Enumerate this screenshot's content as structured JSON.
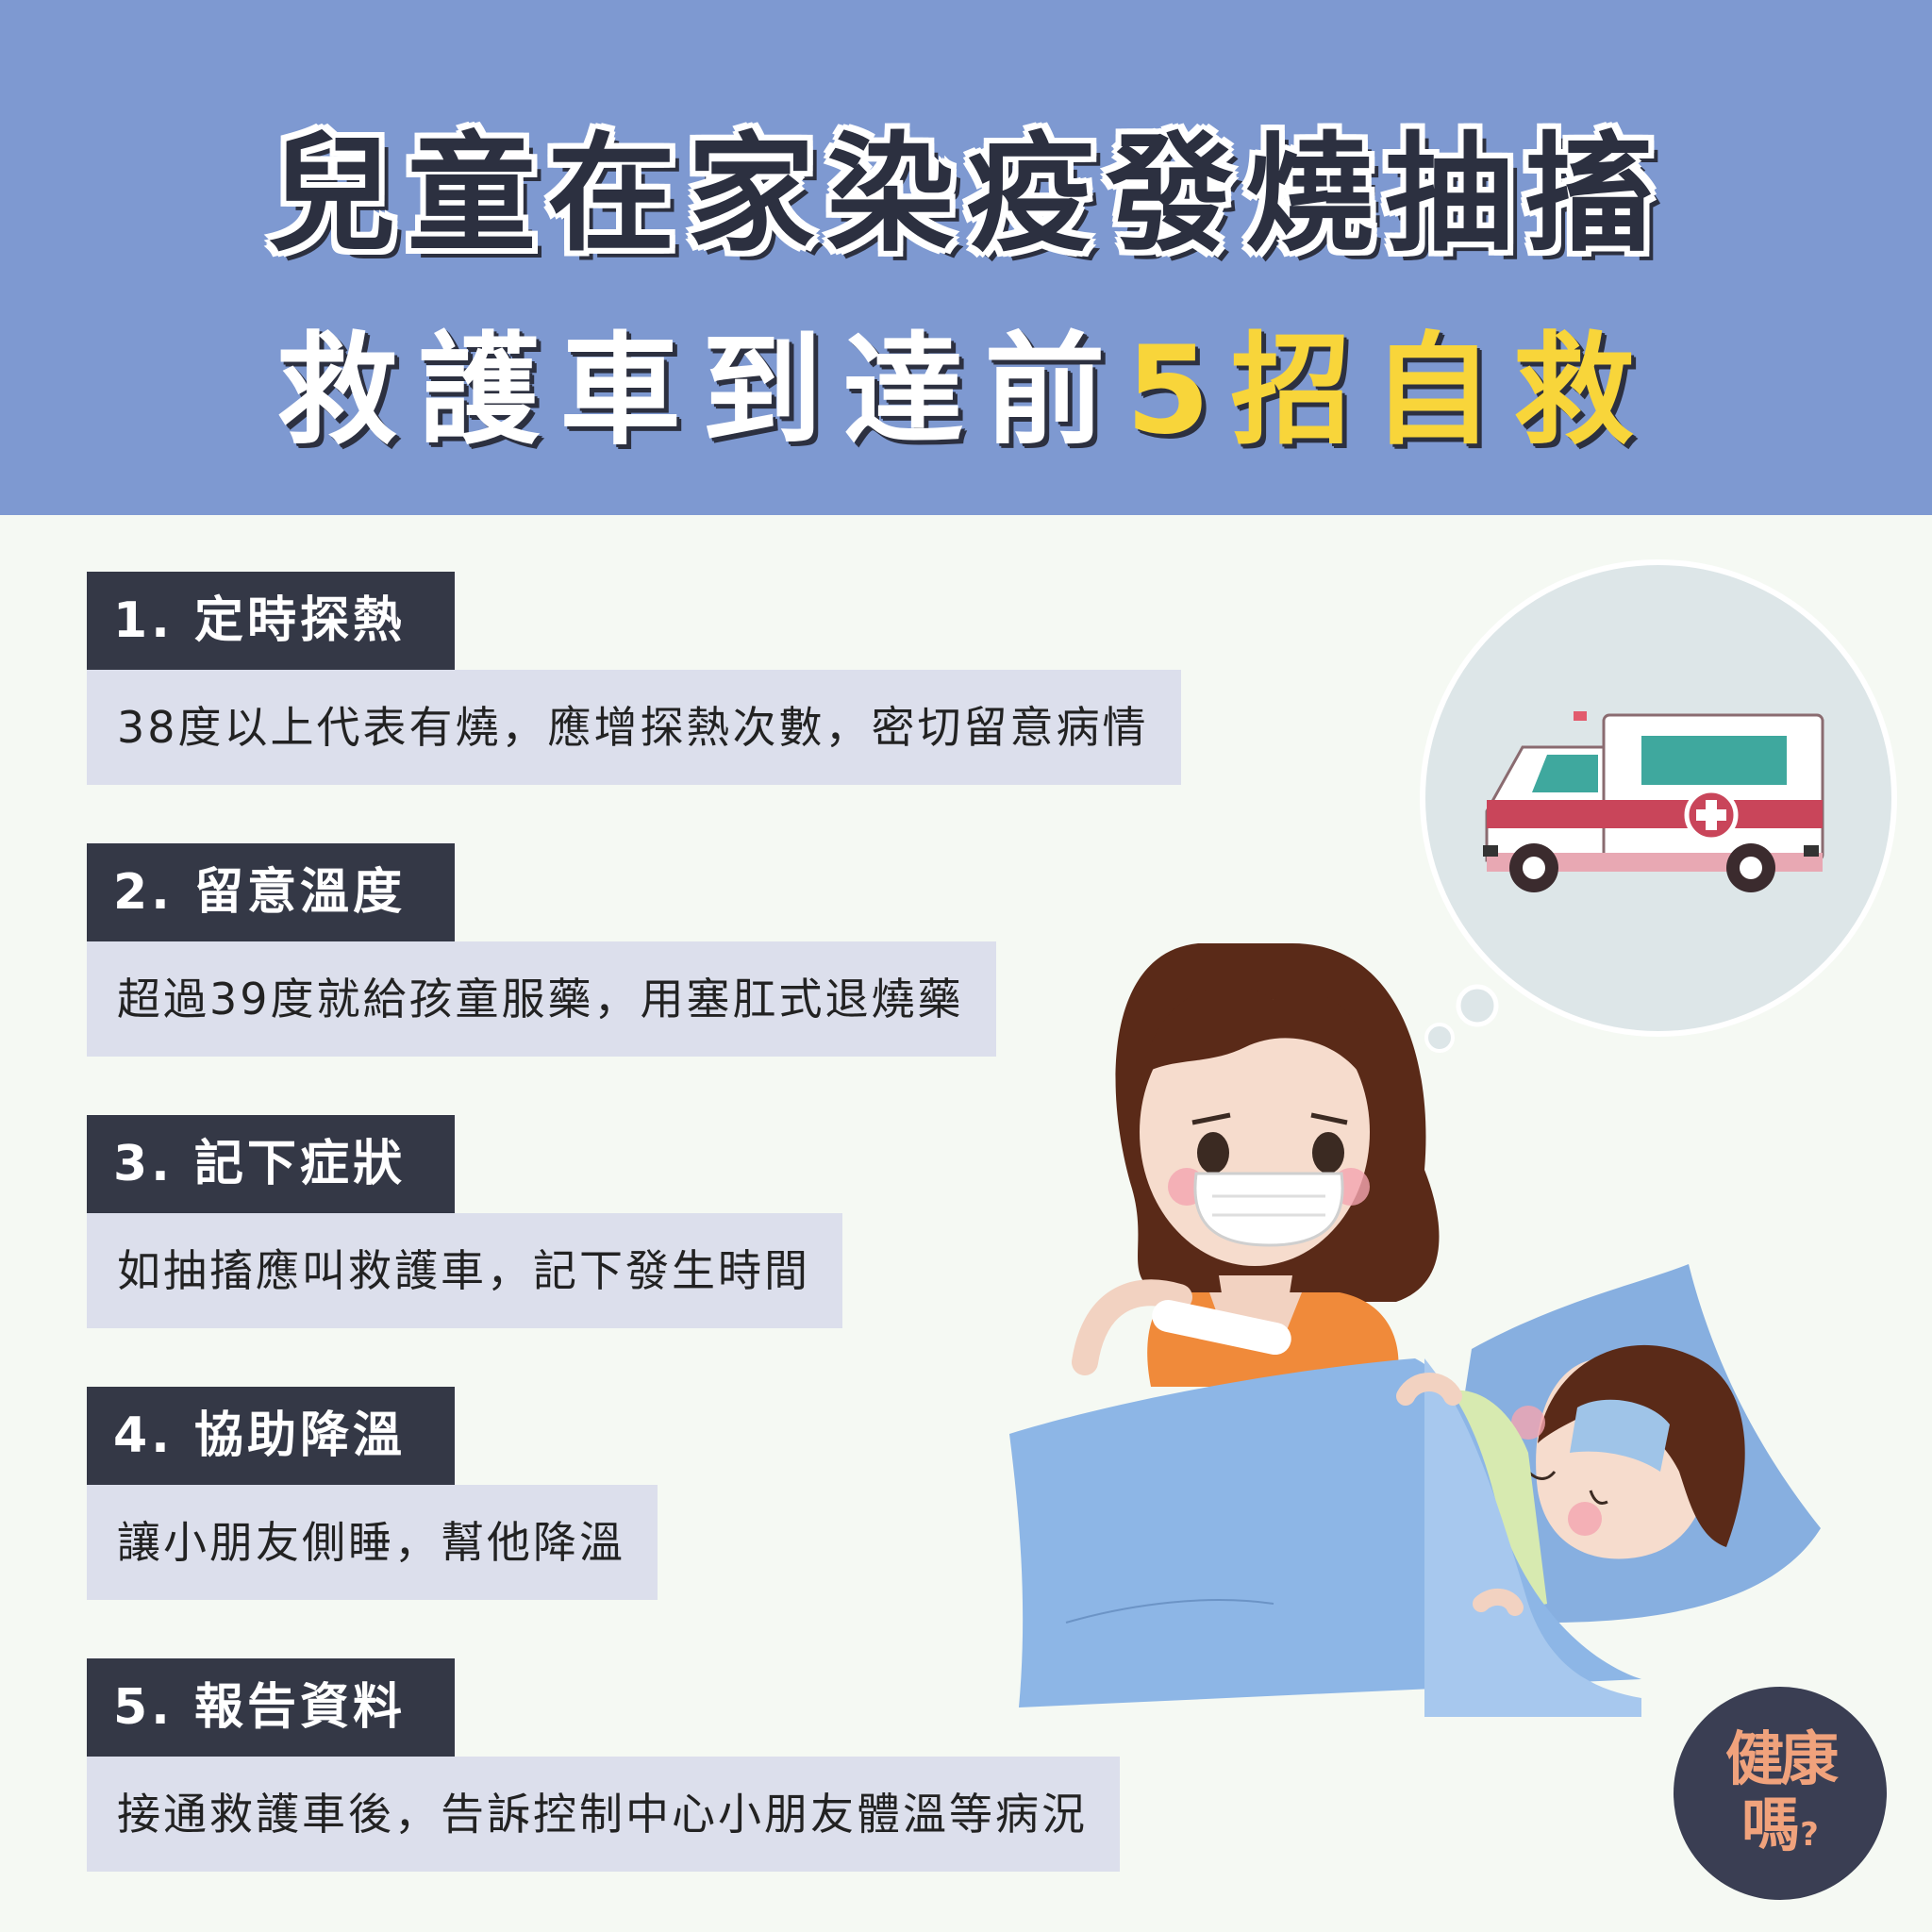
{
  "header": {
    "title_line1": "兒童在家染疫發燒抽搐",
    "title_line2_white": "救護車到達前",
    "title_line2_yellow": "5招自救"
  },
  "tips": [
    {
      "heading": "1. 定時探熱",
      "body": "38度以上代表有燒，應增探熱次數，密切留意病情"
    },
    {
      "heading": "2. 留意溫度",
      "body": "超過39度就給孩童服藥，用塞肛式退燒藥"
    },
    {
      "heading": "3. 記下症狀",
      "body": "如抽搐應叫救護車，記下發生時間"
    },
    {
      "heading": "4. 協助降溫",
      "body": "讓小朋友側睡，幫他降溫"
    },
    {
      "heading": "5. 報告資料",
      "body": "接通救護車後，告訴控制中心小朋友體溫等病況"
    }
  ],
  "logo": {
    "line1": "健康",
    "line2": "嗎",
    "mark": "?"
  },
  "colors": {
    "header_bg": "#7e99d1",
    "page_bg": "#f5f9f3",
    "tip_heading_bg": "#343846",
    "tip_body_bg": "#dcdfec",
    "highlight": "#f8d53a",
    "logo_bg": "#3a3e53",
    "logo_text": "#f0a27c"
  },
  "icons": [
    "ambulance-icon",
    "thought-bubble",
    "mother-illustration",
    "sick-child-illustration"
  ]
}
